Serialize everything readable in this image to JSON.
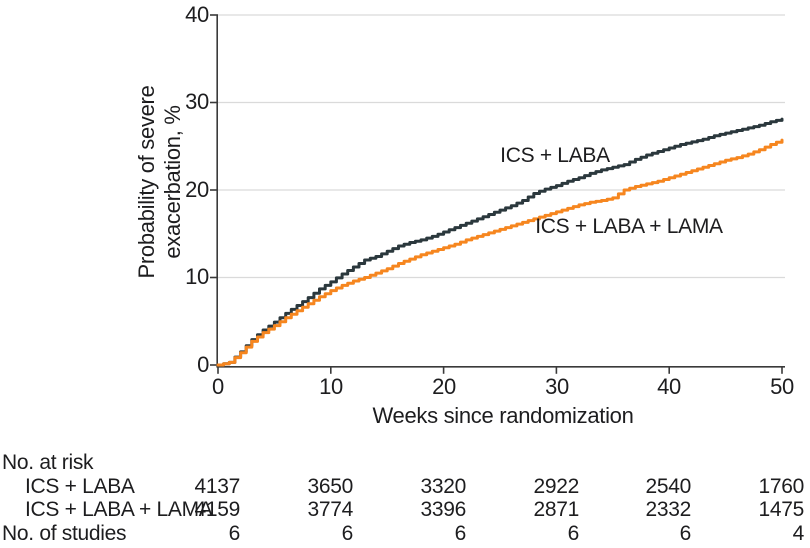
{
  "figure": {
    "ylabel_line1": "Probability of severe",
    "ylabel_line2": "exacerbation, %",
    "xlabel": "Weeks since randomization",
    "series1_label": "ICS + LABA",
    "series2_label": "ICS + LABA + LAMA"
  },
  "colors": {
    "series1": "#2b383d",
    "series2": "#f6861f",
    "grid": "#dadada",
    "axis": "#3a3a3a",
    "text": "#1d1d1f"
  },
  "chart_data": {
    "type": "line",
    "subtype": "kaplan-meier-step-curves",
    "title": "",
    "xlabel": "Weeks since randomization",
    "ylabel": "Probability of severe exacerbation, %",
    "xlim": [
      0,
      50
    ],
    "ylim": [
      0,
      40
    ],
    "x_ticks": [
      0,
      10,
      20,
      30,
      40,
      50
    ],
    "y_ticks": [
      0,
      10,
      20,
      30,
      40
    ],
    "grid": "horizontal",
    "legend_position": "in-plot-labels",
    "x_start": 0,
    "x_step_weeks": 1,
    "series": [
      {
        "name": "ICS + LABA",
        "values": [
          0,
          0.3,
          1.5,
          2.9,
          4.0,
          4.9,
          5.9,
          6.8,
          7.7,
          8.7,
          9.5,
          10.4,
          11.2,
          12.0,
          12.4,
          13.0,
          13.6,
          14.0,
          14.3,
          14.7,
          15.2,
          15.7,
          16.2,
          16.7,
          17.2,
          17.7,
          18.2,
          18.8,
          19.6,
          20.1,
          20.5,
          21.0,
          21.4,
          21.9,
          22.3,
          22.6,
          22.9,
          23.5,
          24.0,
          24.4,
          24.8,
          25.2,
          25.5,
          25.8,
          26.2,
          26.5,
          26.8,
          27.1,
          27.4,
          27.8,
          28.1
        ]
      },
      {
        "name": "ICS + LABA + LAMA",
        "values": [
          0,
          0.3,
          1.4,
          2.7,
          3.7,
          4.5,
          5.4,
          6.2,
          7.0,
          7.8,
          8.5,
          9.1,
          9.6,
          10.0,
          10.5,
          11.0,
          11.6,
          12.1,
          12.6,
          13.0,
          13.4,
          13.8,
          14.3,
          14.7,
          15.1,
          15.5,
          15.9,
          16.3,
          16.7,
          17.1,
          17.5,
          17.9,
          18.3,
          18.6,
          18.8,
          19.1,
          20.0,
          20.4,
          20.7,
          21.0,
          21.4,
          21.8,
          22.2,
          22.6,
          23.0,
          23.4,
          23.7,
          24.1,
          24.6,
          25.2,
          25.7
        ]
      }
    ]
  },
  "risk_table": {
    "header": "No. at risk",
    "rows": [
      {
        "label": "ICS + LABA",
        "values": [
          "4137",
          "3650",
          "3320",
          "2922",
          "2540",
          "1760"
        ]
      },
      {
        "label": "ICS + LABA + LAMA",
        "values": [
          "4159",
          "3774",
          "3396",
          "2871",
          "2332",
          "1475"
        ]
      }
    ],
    "footer": {
      "label": "No. of studies",
      "values": [
        "6",
        "6",
        "6",
        "6",
        "6",
        "4"
      ]
    }
  }
}
